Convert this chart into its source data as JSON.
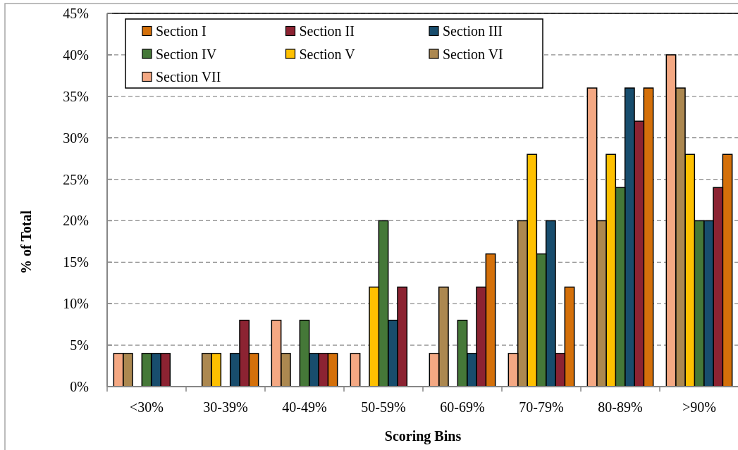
{
  "chart_data": {
    "type": "bar",
    "xlabel": "Scoring Bins",
    "ylabel": "% of Total",
    "categories": [
      "<30%",
      "30-39%",
      "40-49%",
      "50-59%",
      "60-69%",
      "70-79%",
      "80-89%",
      ">90%"
    ],
    "series": [
      {
        "name": "Section I",
        "color": "#d4700a",
        "values": [
          0,
          4,
          4,
          0,
          16,
          12,
          36,
          28
        ]
      },
      {
        "name": "Section II",
        "color": "#8c2332",
        "values": [
          4,
          8,
          4,
          12,
          12,
          4,
          32,
          24
        ]
      },
      {
        "name": "Section III",
        "color": "#184d6d",
        "values": [
          4,
          4,
          4,
          8,
          4,
          20,
          36,
          20
        ]
      },
      {
        "name": "Section IV",
        "color": "#457838",
        "values": [
          4,
          0,
          8,
          20,
          8,
          16,
          24,
          20
        ]
      },
      {
        "name": "Section V",
        "color": "#fec000",
        "values": [
          0,
          4,
          0,
          12,
          0,
          28,
          28,
          28
        ]
      },
      {
        "name": "Section VI",
        "color": "#ac8850",
        "values": [
          4,
          4,
          4,
          0,
          12,
          20,
          20,
          36
        ]
      },
      {
        "name": "Section VII",
        "color": "#f4a883",
        "values": [
          4,
          0,
          8,
          4,
          4,
          4,
          36,
          40
        ]
      }
    ],
    "ylim": [
      0,
      45
    ],
    "yticks": [
      {
        "value": 0,
        "label": "0%"
      },
      {
        "value": 5,
        "label": "5%"
      },
      {
        "value": 10,
        "label": "10%"
      },
      {
        "value": 15,
        "label": "15%"
      },
      {
        "value": 20,
        "label": "20%"
      },
      {
        "value": 25,
        "label": "25%"
      },
      {
        "value": 30,
        "label": "30%"
      },
      {
        "value": 35,
        "label": "35%"
      },
      {
        "value": 40,
        "label": "40%"
      },
      {
        "value": 45,
        "label": "45%"
      }
    ],
    "grid": "y",
    "legend": "top left"
  }
}
